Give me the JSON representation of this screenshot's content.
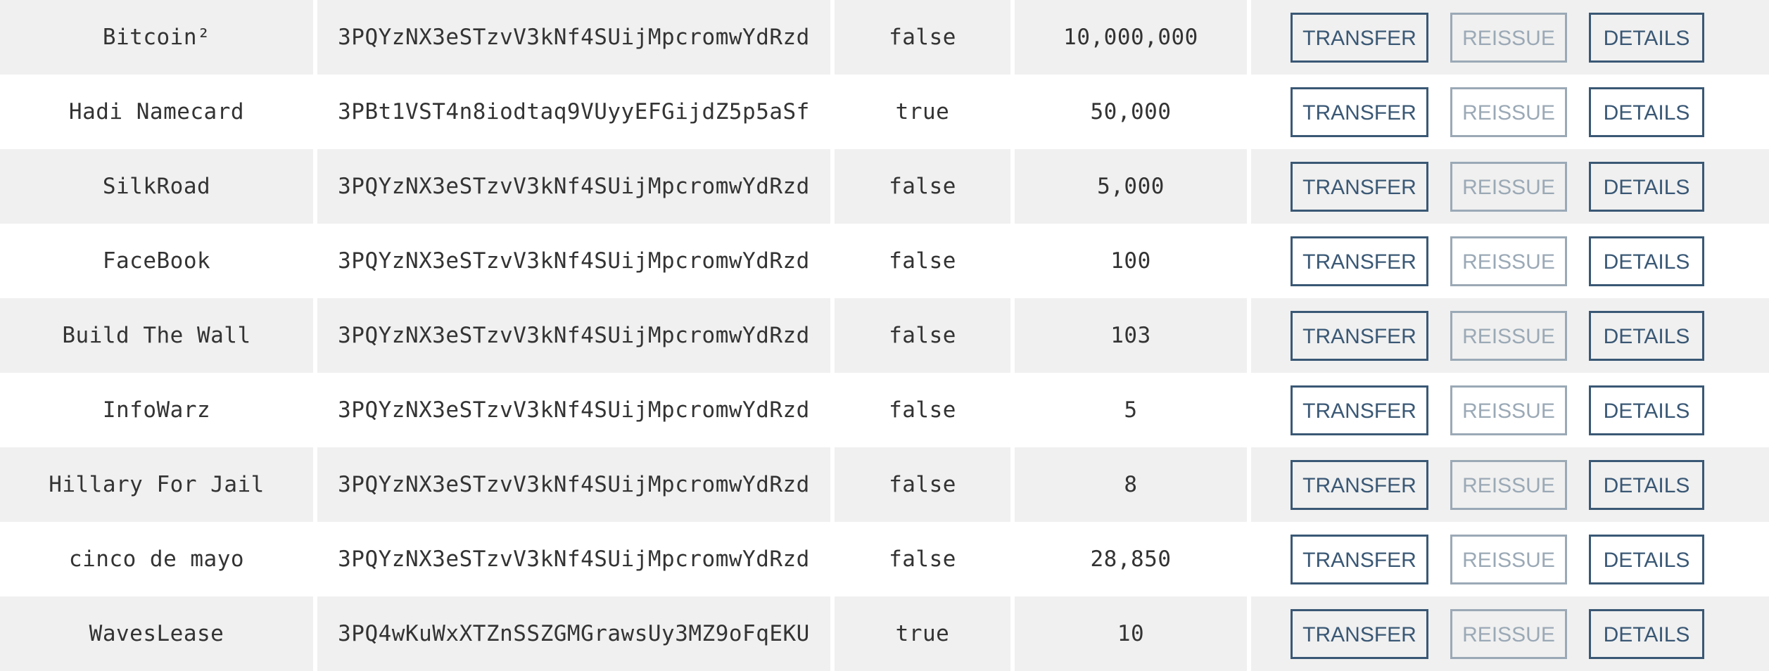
{
  "buttons": {
    "transfer": "TRANSFER",
    "reissue": "REISSUE",
    "details": "DETAILS"
  },
  "colors": {
    "button": "#3a5875",
    "button_disabled": "#9ba9b6",
    "row_alt": "#f0f0f0"
  },
  "rows": [
    {
      "name": "Bitcoin²",
      "issuer": "3PQYzNX3eSTzvV3kNf4SUijMpcromwYdRzd",
      "reissuable": "false",
      "quantity": "10,000,000"
    },
    {
      "name": "Hadi Namecard",
      "issuer": "3PBt1VST4n8iodtaq9VUyyEFGijdZ5p5aSf",
      "reissuable": "true",
      "quantity": "50,000"
    },
    {
      "name": "SilkRoad",
      "issuer": "3PQYzNX3eSTzvV3kNf4SUijMpcromwYdRzd",
      "reissuable": "false",
      "quantity": "5,000"
    },
    {
      "name": "FaceBook",
      "issuer": "3PQYzNX3eSTzvV3kNf4SUijMpcromwYdRzd",
      "reissuable": "false",
      "quantity": "100"
    },
    {
      "name": "Build The Wall",
      "issuer": "3PQYzNX3eSTzvV3kNf4SUijMpcromwYdRzd",
      "reissuable": "false",
      "quantity": "103"
    },
    {
      "name": "InfoWarz",
      "issuer": "3PQYzNX3eSTzvV3kNf4SUijMpcromwYdRzd",
      "reissuable": "false",
      "quantity": "5"
    },
    {
      "name": "Hillary For Jail",
      "issuer": "3PQYzNX3eSTzvV3kNf4SUijMpcromwYdRzd",
      "reissuable": "false",
      "quantity": "8"
    },
    {
      "name": "cinco de mayo",
      "issuer": "3PQYzNX3eSTzvV3kNf4SUijMpcromwYdRzd",
      "reissuable": "false",
      "quantity": "28,850"
    },
    {
      "name": "WavesLease",
      "issuer": "3PQ4wKuWxXTZnSSZGMGrawsUy3MZ9oFqEKU",
      "reissuable": "true",
      "quantity": "10"
    }
  ]
}
